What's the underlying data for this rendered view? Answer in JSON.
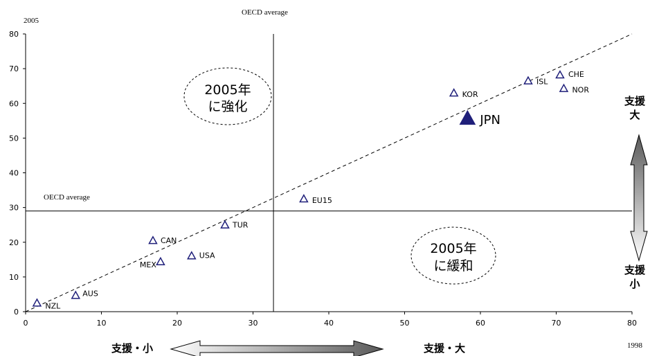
{
  "chart_data": {
    "type": "scatter",
    "x_year_label": "1998",
    "y_year_label": "2005",
    "xlim": [
      0,
      80
    ],
    "ylim": [
      0,
      80
    ],
    "x_ticks": [
      0,
      10,
      20,
      30,
      40,
      50,
      60,
      70,
      80
    ],
    "y_ticks": [
      0,
      10,
      20,
      30,
      40,
      50,
      60,
      70,
      80
    ],
    "grid": false,
    "points": [
      {
        "label": "NZL",
        "x": 1.5,
        "y": 2.5
      },
      {
        "label": "AUS",
        "x": 6.6,
        "y": 4.7
      },
      {
        "label": "CAN",
        "x": 16.8,
        "y": 20.5
      },
      {
        "label": "MEX",
        "x": 17.8,
        "y": 14.4
      },
      {
        "label": "USA",
        "x": 21.9,
        "y": 16.1
      },
      {
        "label": "TUR",
        "x": 26.3,
        "y": 25.0
      },
      {
        "label": "EU15",
        "x": 36.7,
        "y": 32.5
      },
      {
        "label": "KOR",
        "x": 56.5,
        "y": 63.0
      },
      {
        "label": "JPN",
        "x": 58.3,
        "y": 55.7,
        "highlight": true
      },
      {
        "label": "ISL",
        "x": 66.3,
        "y": 66.5
      },
      {
        "label": "CHE",
        "x": 70.5,
        "y": 68.2
      },
      {
        "label": "NOR",
        "x": 71.0,
        "y": 64.3
      }
    ],
    "oecd_average_x": 32.7,
    "oecd_average_y": 29.0,
    "oecd_average_label_top": "OECD average",
    "oecd_average_label_left": "OECD average",
    "diagonal": {
      "from": [
        0,
        0
      ],
      "to": [
        80,
        80
      ],
      "style": "dashed"
    },
    "annotations": {
      "upper_left_line1": "2005年",
      "upper_left_line2": "に強化",
      "lower_right_line1": "2005年",
      "lower_right_line2": "に緩和",
      "x_arrow_left": "支援・小",
      "x_arrow_right": "支援・大",
      "y_arrow_top_line1": "支援",
      "y_arrow_top_line2": "大",
      "y_arrow_bottom_line1": "支援",
      "y_arrow_bottom_line2": "小"
    },
    "colors": {
      "marker": "#1f1f7a",
      "text": "#000000"
    }
  }
}
